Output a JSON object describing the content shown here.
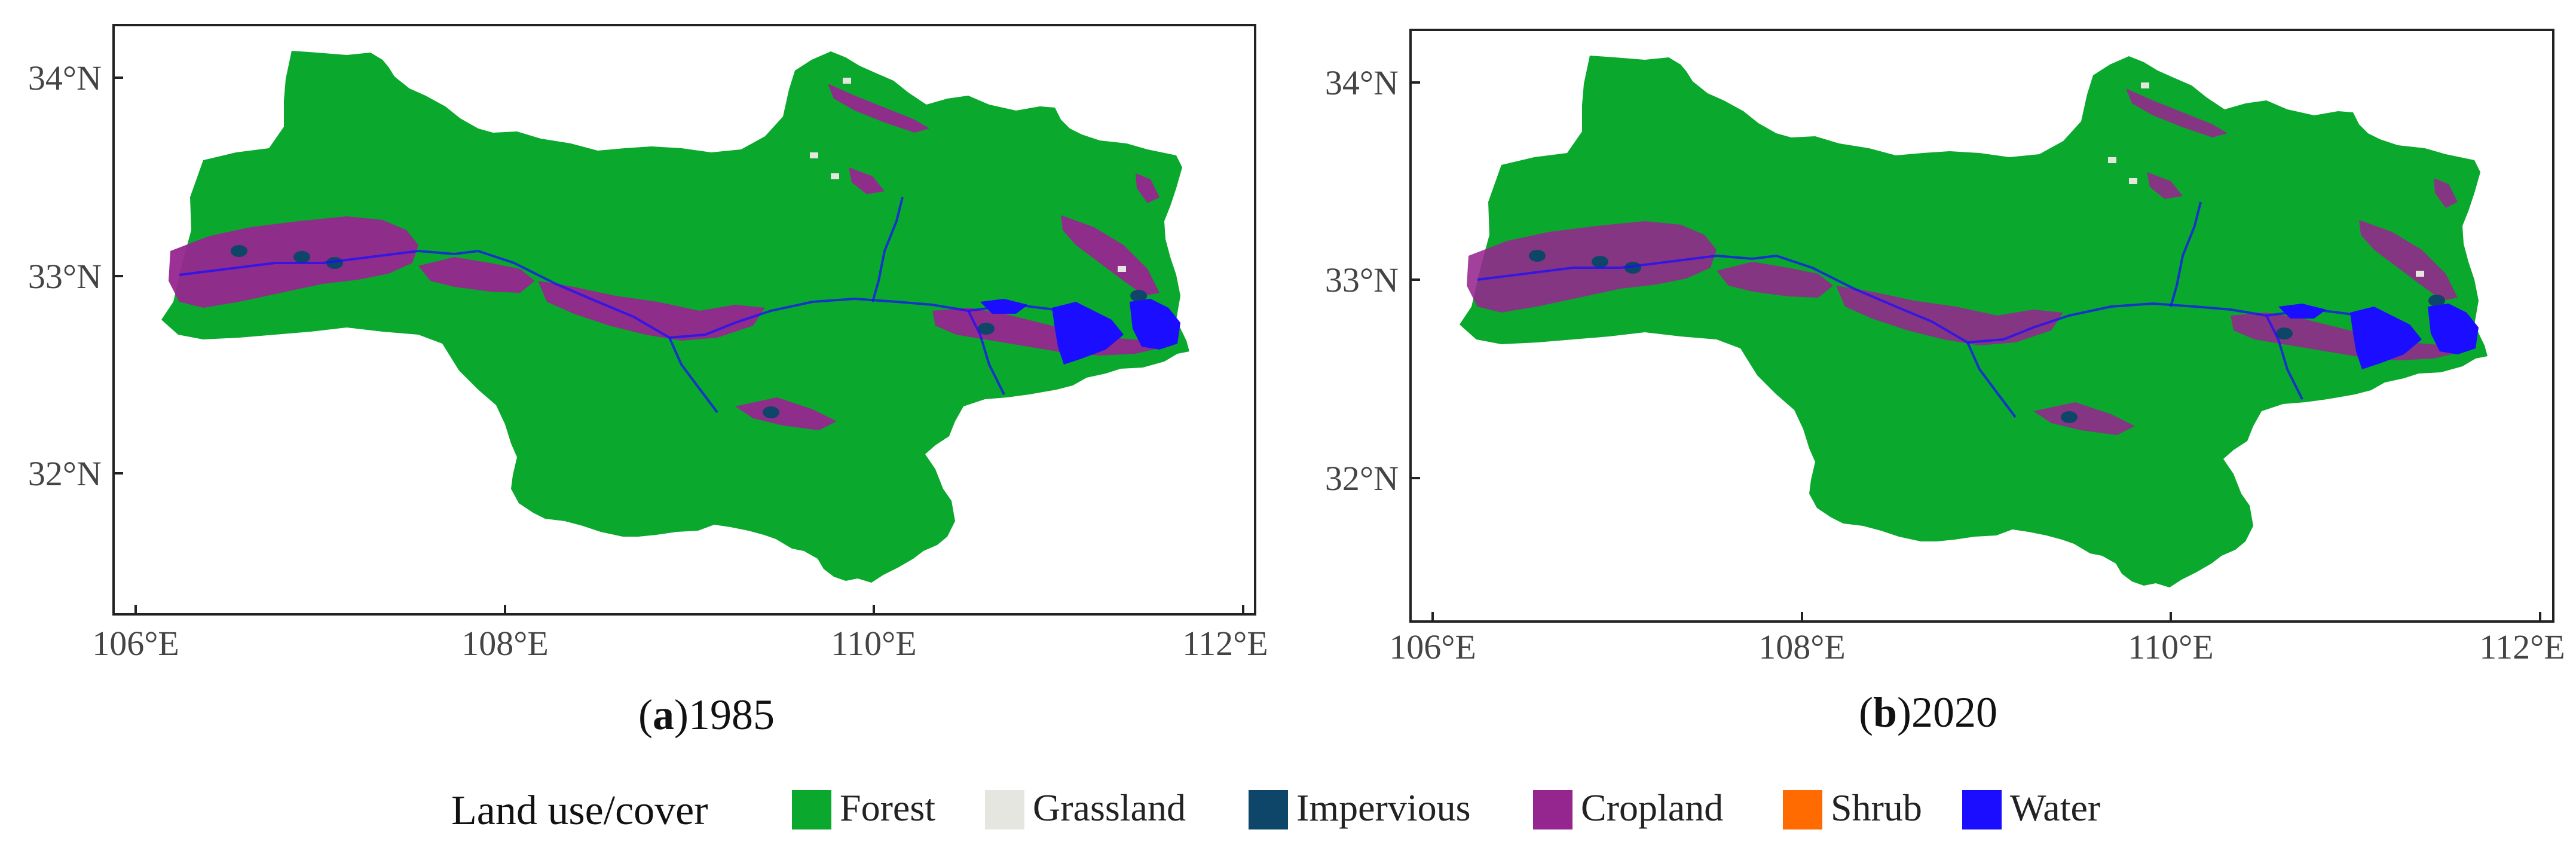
{
  "colors": {
    "forest": "#0aa82d",
    "grassland": "#e6e6e0",
    "impervious": "#0d4668",
    "cropland": "#96268f",
    "shrub": "#ff6b00",
    "water": "#1b0dff"
  },
  "panels": [
    {
      "id": "a",
      "caption_letter": "a",
      "caption_year": "1985",
      "y_ticks": [
        "34°N",
        "33°N",
        "32°N"
      ],
      "x_ticks": [
        "106°E",
        "108°E",
        "110°E",
        "112°E"
      ]
    },
    {
      "id": "b",
      "caption_letter": "b",
      "caption_year": "2020",
      "y_ticks": [
        "34°N",
        "33°N",
        "32°N"
      ],
      "x_ticks": [
        "106°E",
        "108°E",
        "110°E",
        "112°E"
      ]
    }
  ],
  "legend": {
    "title": "Land use/cover",
    "items": [
      {
        "label": "Forest",
        "icon": "forest-swatch"
      },
      {
        "label": "Grassland",
        "icon": "grassland-swatch"
      },
      {
        "label": "Impervious",
        "icon": "impervious-swatch"
      },
      {
        "label": "Cropland",
        "icon": "cropland-swatch"
      },
      {
        "label": "Shrub",
        "icon": "shrub-swatch"
      },
      {
        "label": "Water",
        "icon": "water-swatch"
      }
    ]
  }
}
